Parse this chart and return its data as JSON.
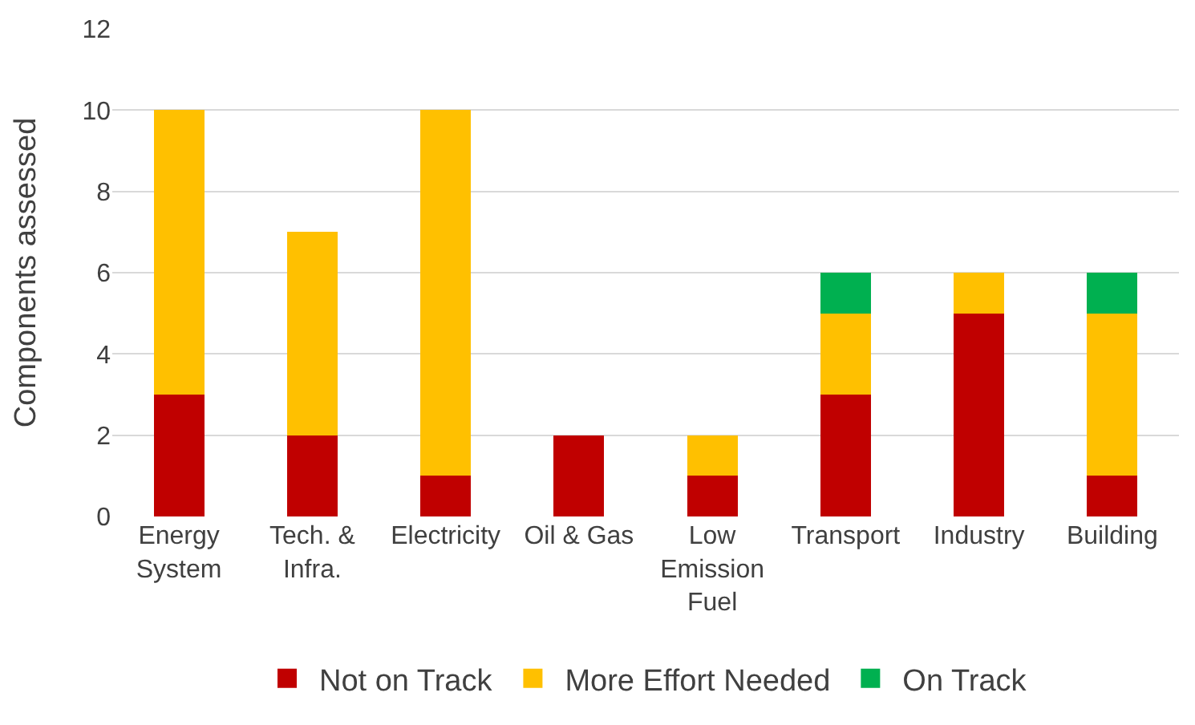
{
  "chart_data": {
    "type": "bar",
    "stacked": true,
    "ylabel": "Components assessed",
    "categories": [
      "Energy\nSystem",
      "Tech. &\nInfra.",
      "Electricity",
      "Oil & Gas",
      "Low\nEmission\nFuel",
      "Transport",
      "Industry",
      "Building"
    ],
    "series": [
      {
        "name": "Not on Track",
        "color": "#c00000",
        "values": [
          3,
          2,
          1,
          2,
          1,
          3,
          5,
          1
        ]
      },
      {
        "name": "More Effort Needed",
        "color": "#ffc000",
        "values": [
          7,
          5,
          9,
          0,
          1,
          2,
          1,
          4
        ]
      },
      {
        "name": "On Track",
        "color": "#00b050",
        "values": [
          0,
          0,
          0,
          0,
          0,
          1,
          0,
          1
        ]
      }
    ],
    "ylim": [
      0,
      12
    ],
    "yticks": [
      0,
      2,
      4,
      6,
      8,
      10,
      12
    ],
    "grid": "y",
    "legend": "bottom"
  }
}
